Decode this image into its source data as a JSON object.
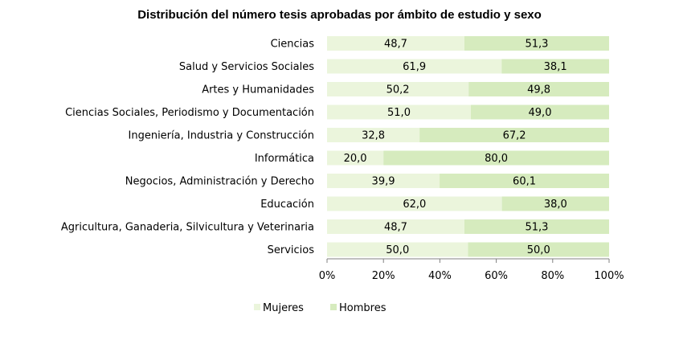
{
  "chart_data": {
    "type": "bar",
    "orientation": "horizontal",
    "stacked": "percent",
    "title": "Distribución del número  tesis aprobadas por ámbito de estudio y sexo",
    "categories": [
      "Ciencias",
      "Salud y Servicios Sociales",
      "Artes y Humanidades",
      "Ciencias Sociales, Periodismo y Documentación",
      "Ingeniería, Industria y Construcción",
      "Informática",
      "Negocios, Administración y Derecho",
      "Educación",
      "Agricultura, Ganaderia, Silvicultura y Veterinaria",
      "Servicios"
    ],
    "series": [
      {
        "name": "Mujeres",
        "color": "#ebf5dc",
        "values": [
          48.7,
          61.9,
          50.2,
          51.0,
          32.8,
          20.0,
          39.9,
          62.0,
          48.7,
          50.0
        ],
        "labels": [
          "48,7",
          "61,9",
          "50,2",
          "51,0",
          "32,8",
          "20,0",
          "39,9",
          "62,0",
          "48,7",
          "50,0"
        ]
      },
      {
        "name": "Hombres",
        "color": "#d6ebbe",
        "values": [
          51.3,
          38.1,
          49.8,
          49.0,
          67.2,
          80.0,
          60.1,
          38.0,
          51.3,
          50.0
        ],
        "labels": [
          "51,3",
          "38,1",
          "49,8",
          "49,0",
          "67,2",
          "80,0",
          "60,1",
          "38,0",
          "51,3",
          "50,0"
        ]
      }
    ],
    "xlim": [
      0,
      100
    ],
    "xticks": [
      "0%",
      "20%",
      "40%",
      "60%",
      "80%",
      "100%"
    ],
    "grid": false,
    "legend_position": "bottom-left"
  }
}
